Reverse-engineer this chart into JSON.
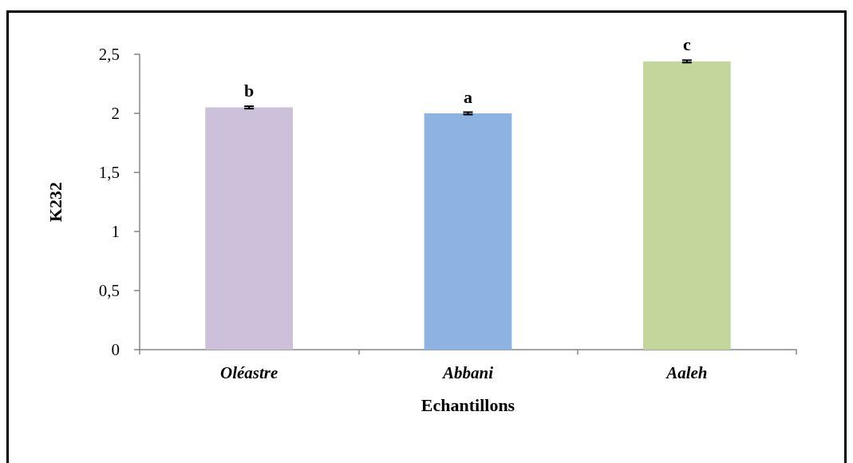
{
  "chart_data": {
    "type": "bar",
    "xlabel": "Echantillons",
    "ylabel": "K232",
    "categories": [
      "Oléastre",
      "Abbani",
      "Aaleh"
    ],
    "values": [
      2.05,
      2.0,
      2.44
    ],
    "colors": [
      "#ccc0da",
      "#8db3e2",
      "#c3d69b"
    ],
    "errors": [
      0.01,
      0.01,
      0.01
    ],
    "ylim": [
      0,
      2.5
    ],
    "yticks": [
      0,
      {
        "value": 0.5,
        "label": "0,5"
      },
      1,
      {
        "value": 1.5,
        "label": "1,5"
      },
      2,
      {
        "value": 2.5,
        "label": "2,5"
      }
    ],
    "annotations": [
      {
        "text": "b",
        "x": "Oléastre",
        "y": 2.05
      },
      {
        "text": "a",
        "x": "Abbani",
        "y": 2.0
      },
      {
        "text": "c",
        "x": "Aaleh",
        "y": 2.44
      }
    ]
  }
}
